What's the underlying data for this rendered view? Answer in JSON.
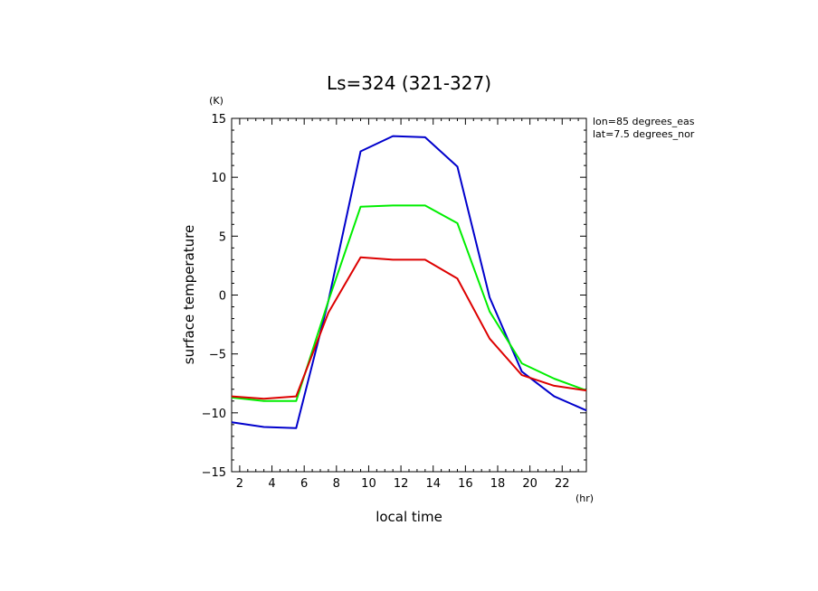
{
  "chart_data": {
    "type": "line",
    "title": "Ls=324 (321-327)",
    "xlabel": "local time",
    "ylabel": "surface temperature",
    "x_unit": "(hr)",
    "y_unit": "(K)",
    "xlim": [
      1.5,
      23.5
    ],
    "ylim": [
      -15,
      15
    ],
    "xticks": [
      2,
      4,
      6,
      8,
      10,
      12,
      14,
      16,
      18,
      20,
      22
    ],
    "yticks": [
      -15,
      -10,
      -5,
      0,
      5,
      10,
      15
    ],
    "grid": false,
    "annotations": [
      "lon=85 degrees_eas",
      "lat=7.5 degrees_nor"
    ],
    "x": [
      1.5,
      3.5,
      5.5,
      7.5,
      9.5,
      11.5,
      13.5,
      15.5,
      17.5,
      19.5,
      21.5,
      23.5
    ],
    "series": [
      {
        "color": "#0000cc",
        "values": [
          -10.8,
          -11.2,
          -11.3,
          -0.5,
          12.2,
          13.5,
          13.4,
          10.9,
          -0.2,
          -6.5,
          -8.6,
          -9.8
        ]
      },
      {
        "color": "#00ee00",
        "values": [
          -8.7,
          -9.0,
          -9.0,
          -0.5,
          7.5,
          7.6,
          7.6,
          6.1,
          -1.4,
          -5.8,
          -7.1,
          -8.1
        ]
      },
      {
        "color": "#dd0000",
        "values": [
          -8.6,
          -8.8,
          -8.6,
          -1.5,
          3.2,
          3.0,
          3.0,
          1.4,
          -3.7,
          -6.8,
          -7.7,
          -8.1
        ]
      }
    ]
  }
}
